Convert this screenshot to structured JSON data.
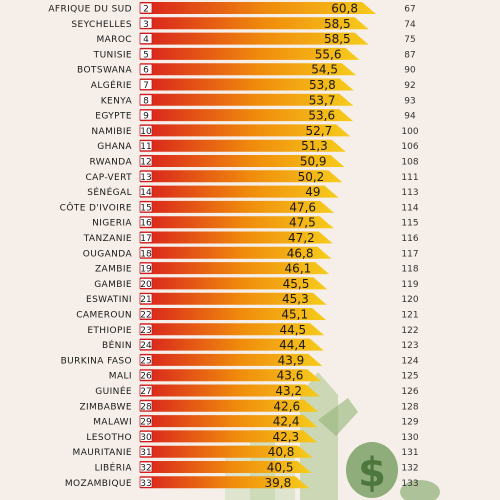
{
  "chart_data": {
    "type": "bar",
    "orientation": "horizontal",
    "grid": false,
    "legend": "none",
    "colors": {
      "bar_start": "#d81e1e",
      "bar_mid": "#f08c0c",
      "bar_end": "#f6cc1c",
      "rank_box": "#ffffff",
      "rank_border": "#c8161d",
      "background": "#f6efe9",
      "text": "#1a1a1a"
    },
    "rows": [
      {
        "country": "AFRIQUE DU SUD",
        "rank": "2",
        "value": 60.8,
        "label": "60,8",
        "world_rank": "67"
      },
      {
        "country": "SEYCHELLES",
        "rank": "3",
        "value": 58.5,
        "label": "58,5",
        "world_rank": "74"
      },
      {
        "country": "MAROC",
        "rank": "4",
        "value": 58.5,
        "label": "58,5",
        "world_rank": "75"
      },
      {
        "country": "TUNISIE",
        "rank": "5",
        "value": 55.6,
        "label": "55,6",
        "world_rank": "87"
      },
      {
        "country": "BOTSWANA",
        "rank": "6",
        "value": 54.5,
        "label": "54,5",
        "world_rank": "90"
      },
      {
        "country": "ALGÉRIE",
        "rank": "7",
        "value": 53.8,
        "label": "53,8",
        "world_rank": "92"
      },
      {
        "country": "KENYA",
        "rank": "8",
        "value": 53.7,
        "label": "53,7",
        "world_rank": "93"
      },
      {
        "country": "EGYPTE",
        "rank": "9",
        "value": 53.6,
        "label": "53,6",
        "world_rank": "94"
      },
      {
        "country": "NAMIBIE",
        "rank": "10",
        "value": 52.7,
        "label": "52,7",
        "world_rank": "100"
      },
      {
        "country": "GHANA",
        "rank": "11",
        "value": 51.3,
        "label": "51,3",
        "world_rank": "106"
      },
      {
        "country": "RWANDA",
        "rank": "12",
        "value": 50.9,
        "label": "50,9",
        "world_rank": "108"
      },
      {
        "country": "CAP-VERT",
        "rank": "13",
        "value": 50.2,
        "label": "50,2",
        "world_rank": "111"
      },
      {
        "country": "SÉNÉGAL",
        "rank": "14",
        "value": 49,
        "label": "49",
        "world_rank": "113"
      },
      {
        "country": "CÔTE D'IVOIRE",
        "rank": "15",
        "value": 47.6,
        "label": "47,6",
        "world_rank": "114"
      },
      {
        "country": "NIGERIA",
        "rank": "16",
        "value": 47.5,
        "label": "47,5",
        "world_rank": "115"
      },
      {
        "country": "TANZANIE",
        "rank": "17",
        "value": 47.2,
        "label": "47,2",
        "world_rank": "116"
      },
      {
        "country": "OUGANDA",
        "rank": "18",
        "value": 46.8,
        "label": "46,8",
        "world_rank": "117"
      },
      {
        "country": "ZAMBIE",
        "rank": "19",
        "value": 46.1,
        "label": "46,1",
        "world_rank": "118"
      },
      {
        "country": "GAMBIE",
        "rank": "20",
        "value": 45.5,
        "label": "45,5",
        "world_rank": "119"
      },
      {
        "country": "ESWATINI",
        "rank": "21",
        "value": 45.3,
        "label": "45,3",
        "world_rank": "120"
      },
      {
        "country": "CAMEROUN",
        "rank": "22",
        "value": 45.1,
        "label": "45,1",
        "world_rank": "121"
      },
      {
        "country": "ETHIOPIE",
        "rank": "23",
        "value": 44.5,
        "label": "44,5",
        "world_rank": "122"
      },
      {
        "country": "BÉNIN",
        "rank": "24",
        "value": 44.4,
        "label": "44,4",
        "world_rank": "123"
      },
      {
        "country": "BURKINA FASO",
        "rank": "25",
        "value": 43.9,
        "label": "43,9",
        "world_rank": "124"
      },
      {
        "country": "MALI",
        "rank": "26",
        "value": 43.6,
        "label": "43,6",
        "world_rank": "125"
      },
      {
        "country": "GUINÉE",
        "rank": "27",
        "value": 43.2,
        "label": "43,2",
        "world_rank": "126"
      },
      {
        "country": "ZIMBABWE",
        "rank": "28",
        "value": 42.6,
        "label": "42,6",
        "world_rank": "128"
      },
      {
        "country": "MALAWI",
        "rank": "29",
        "value": 42.4,
        "label": "42,4",
        "world_rank": "129"
      },
      {
        "country": "LESOTHO",
        "rank": "30",
        "value": 42.3,
        "label": "42,3",
        "world_rank": "130"
      },
      {
        "country": "MAURITANIE",
        "rank": "31",
        "value": 40.8,
        "label": "40,8",
        "world_rank": "131"
      },
      {
        "country": "LIBÉRIA",
        "rank": "32",
        "value": 40.5,
        "label": "40,5",
        "world_rank": "132"
      },
      {
        "country": "MOZAMBIQUE",
        "rank": "33",
        "value": 39.8,
        "label": "39,8",
        "world_rank": "133"
      }
    ]
  }
}
